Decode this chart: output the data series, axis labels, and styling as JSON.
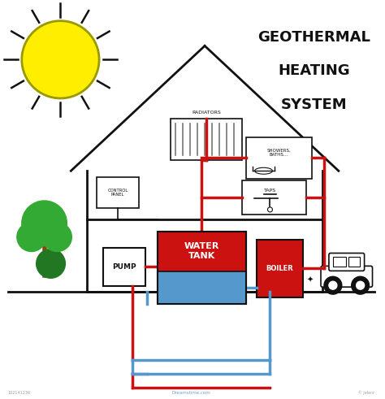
{
  "bg_color": "#ffffff",
  "red": "#cc1111",
  "blue": "#5599cc",
  "green": "#33aa33",
  "dark_green": "#227722",
  "sun_yellow": "#ffee00",
  "sun_edge": "#999900",
  "black": "#111111",
  "gray": "#777777",
  "brown": "#8B4513",
  "title_lines": [
    "GEOTHERMAL",
    "HEATING",
    "SYSTEM"
  ]
}
